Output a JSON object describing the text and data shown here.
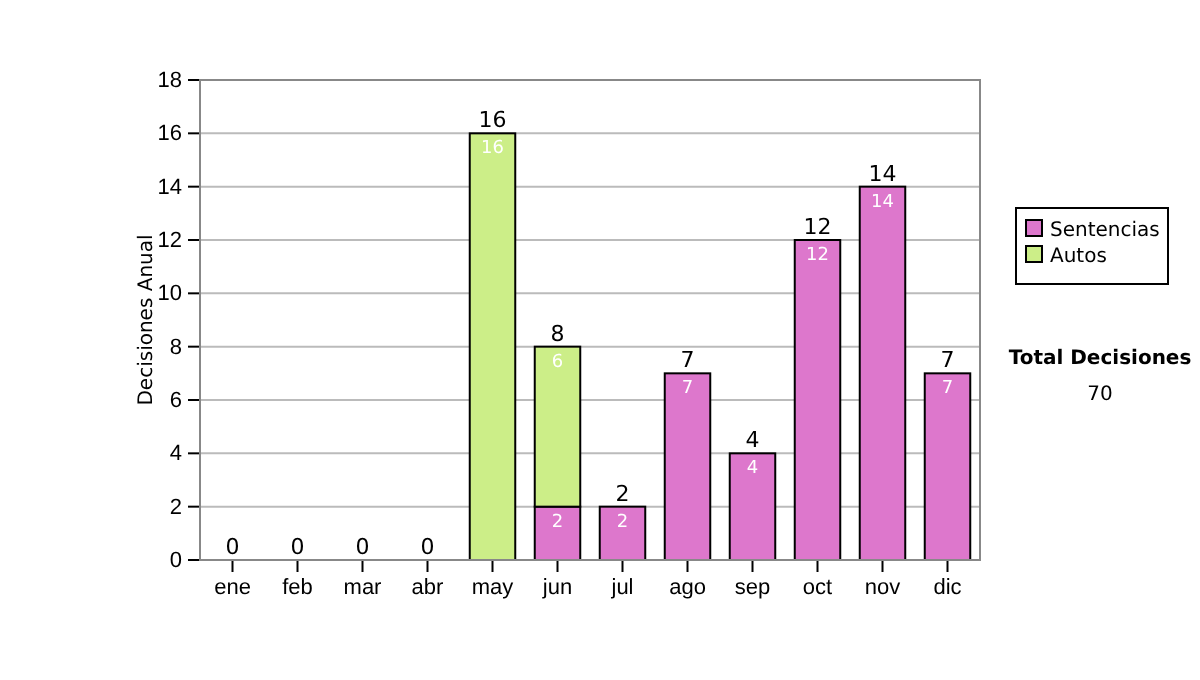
{
  "chart_data": {
    "type": "bar",
    "stacked": true,
    "ylabel": "Decisiones Anual",
    "categories": [
      "ene",
      "feb",
      "mar",
      "abr",
      "may",
      "jun",
      "jul",
      "ago",
      "sep",
      "oct",
      "nov",
      "dic"
    ],
    "series": [
      {
        "name": "Sentencias",
        "color": "#dd77cc",
        "values": [
          0,
          0,
          0,
          0,
          0,
          2,
          2,
          7,
          4,
          12,
          14,
          7
        ],
        "value_labels": [
          null,
          null,
          null,
          null,
          null,
          "2",
          "2",
          "7",
          "4",
          "12",
          "14",
          "7"
        ]
      },
      {
        "name": "Autos",
        "color": "#ccee88",
        "values": [
          0,
          0,
          0,
          0,
          16,
          6,
          0,
          0,
          0,
          0,
          0,
          0
        ],
        "value_labels": [
          null,
          null,
          null,
          null,
          "16",
          "6",
          null,
          null,
          null,
          null,
          null,
          null
        ]
      }
    ],
    "totals": [
      "0",
      "0",
      "0",
      "0",
      "16",
      "8",
      "2",
      "7",
      "4",
      "12",
      "14",
      "7"
    ],
    "ylim": [
      0,
      18
    ],
    "yticks": [
      0,
      2,
      4,
      6,
      8,
      10,
      12,
      14,
      16,
      18
    ],
    "grid": "y",
    "legend": "right",
    "annotations": [
      "Total Decisiones",
      "70"
    ]
  }
}
